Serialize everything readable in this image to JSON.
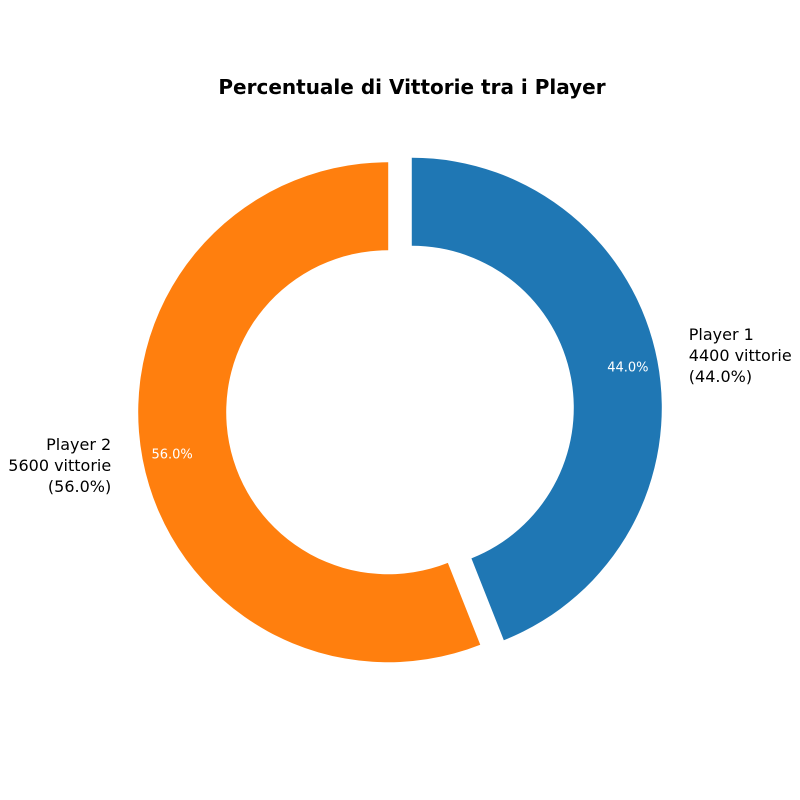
{
  "chart_data": {
    "type": "pie",
    "variant": "donut",
    "title": "Percentuale di Vittorie tra i Player",
    "start_angle_deg": 90,
    "direction": "clockwise",
    "slices": [
      {
        "name": "Player 1",
        "value": 4400,
        "count_text": "4400 vittorie",
        "percent_text": "(44.0%)",
        "inner_label": "44.0%",
        "color": "#1f77b4"
      },
      {
        "name": "Player 2",
        "value": 5600,
        "count_text": "5600 vittorie",
        "percent_text": "(56.0%)",
        "inner_label": "56.0%",
        "color": "#ff7f0e"
      }
    ]
  }
}
